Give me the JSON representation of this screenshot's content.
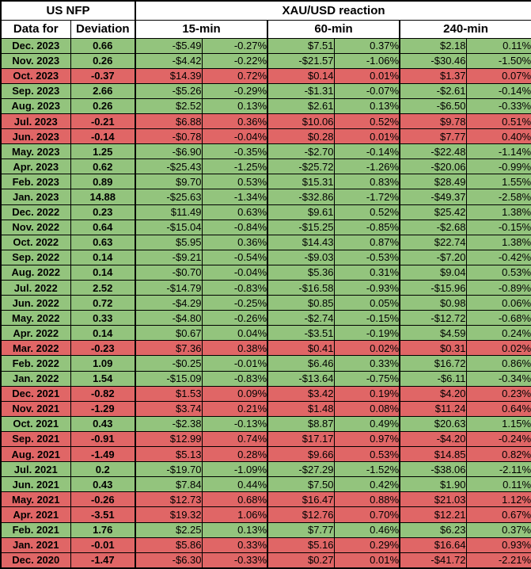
{
  "colors": {
    "row_green": "#93c47d",
    "row_red": "#e06666",
    "grid": "#000000",
    "header_bg": "#ffffff"
  },
  "chart_data": {
    "type": "table",
    "header": {
      "group_left": "US NFP",
      "group_right": "XAU/USD reaction",
      "col_month": "Data for",
      "col_deviation": "Deviation",
      "reaction_windows": [
        "15-min",
        "60-min",
        "240-min"
      ]
    },
    "rows": [
      {
        "month": "Dec. 2023",
        "deviation": "0.66",
        "color": "green",
        "r15_usd": "-$5.49",
        "r15_pct": "-0.27%",
        "r60_usd": "$7.51",
        "r60_pct": "0.37%",
        "r240_usd": "$2.18",
        "r240_pct": "0.11%"
      },
      {
        "month": "Nov. 2023",
        "deviation": "0.26",
        "color": "green",
        "r15_usd": "-$4.42",
        "r15_pct": "-0.22%",
        "r60_usd": "-$21.57",
        "r60_pct": "-1.06%",
        "r240_usd": "-$30.46",
        "r240_pct": "-1.50%"
      },
      {
        "month": "Oct. 2023",
        "deviation": "-0.37",
        "color": "red",
        "r15_usd": "$14.39",
        "r15_pct": "0.72%",
        "r60_usd": "$0.14",
        "r60_pct": "0.01%",
        "r240_usd": "$1.37",
        "r240_pct": "0.07%"
      },
      {
        "month": "Sep. 2023",
        "deviation": "2.66",
        "color": "green",
        "r15_usd": "-$5.26",
        "r15_pct": "-0.29%",
        "r60_usd": "-$1.31",
        "r60_pct": "-0.07%",
        "r240_usd": "-$2.61",
        "r240_pct": "-0.14%"
      },
      {
        "month": "Aug. 2023",
        "deviation": "0.26",
        "color": "green",
        "r15_usd": "$2.52",
        "r15_pct": "0.13%",
        "r60_usd": "$2.61",
        "r60_pct": "0.13%",
        "r240_usd": "-$6.50",
        "r240_pct": "-0.33%"
      },
      {
        "month": "Jul. 2023",
        "deviation": "-0.21",
        "color": "red",
        "r15_usd": "$6.88",
        "r15_pct": "0.36%",
        "r60_usd": "$10.06",
        "r60_pct": "0.52%",
        "r240_usd": "$9.78",
        "r240_pct": "0.51%"
      },
      {
        "month": "Jun. 2023",
        "deviation": "-0.14",
        "color": "red",
        "r15_usd": "-$0.78",
        "r15_pct": "-0.04%",
        "r60_usd": "$0.28",
        "r60_pct": "0.01%",
        "r240_usd": "$7.77",
        "r240_pct": "0.40%"
      },
      {
        "month": "May. 2023",
        "deviation": "1.25",
        "color": "green",
        "r15_usd": "-$6.90",
        "r15_pct": "-0.35%",
        "r60_usd": "-$2.70",
        "r60_pct": "-0.14%",
        "r240_usd": "-$22.48",
        "r240_pct": "-1.14%"
      },
      {
        "month": "Apr. 2023",
        "deviation": "0.62",
        "color": "green",
        "r15_usd": "-$25.43",
        "r15_pct": "-1.25%",
        "r60_usd": "-$25.72",
        "r60_pct": "-1.26%",
        "r240_usd": "-$20.06",
        "r240_pct": "-0.99%"
      },
      {
        "month": "Feb. 2023",
        "deviation": "0.89",
        "color": "green",
        "r15_usd": "$9.70",
        "r15_pct": "0.53%",
        "r60_usd": "$15.31",
        "r60_pct": "0.83%",
        "r240_usd": "$28.49",
        "r240_pct": "1.55%"
      },
      {
        "month": "Jan. 2023",
        "deviation": "14.88",
        "color": "green",
        "r15_usd": "-$25.63",
        "r15_pct": "-1.34%",
        "r60_usd": "-$32.86",
        "r60_pct": "-1.72%",
        "r240_usd": "-$49.37",
        "r240_pct": "-2.58%"
      },
      {
        "month": "Dec. 2022",
        "deviation": "0.23",
        "color": "green",
        "r15_usd": "$11.49",
        "r15_pct": "0.63%",
        "r60_usd": "$9.61",
        "r60_pct": "0.52%",
        "r240_usd": "$25.42",
        "r240_pct": "1.38%"
      },
      {
        "month": "Nov. 2022",
        "deviation": "0.64",
        "color": "green",
        "r15_usd": "-$15.04",
        "r15_pct": "-0.84%",
        "r60_usd": "-$15.25",
        "r60_pct": "-0.85%",
        "r240_usd": "-$2.68",
        "r240_pct": "-0.15%"
      },
      {
        "month": "Oct. 2022",
        "deviation": "0.63",
        "color": "green",
        "r15_usd": "$5.95",
        "r15_pct": "0.36%",
        "r60_usd": "$14.43",
        "r60_pct": "0.87%",
        "r240_usd": "$22.74",
        "r240_pct": "1.38%"
      },
      {
        "month": "Sep. 2022",
        "deviation": "0.14",
        "color": "green",
        "r15_usd": "-$9.21",
        "r15_pct": "-0.54%",
        "r60_usd": "-$9.03",
        "r60_pct": "-0.53%",
        "r240_usd": "-$7.20",
        "r240_pct": "-0.42%"
      },
      {
        "month": "Aug. 2022",
        "deviation": "0.14",
        "color": "green",
        "r15_usd": "-$0.70",
        "r15_pct": "-0.04%",
        "r60_usd": "$5.36",
        "r60_pct": "0.31%",
        "r240_usd": "$9.04",
        "r240_pct": "0.53%"
      },
      {
        "month": "Jul. 2022",
        "deviation": "2.52",
        "color": "green",
        "r15_usd": "-$14.79",
        "r15_pct": "-0.83%",
        "r60_usd": "-$16.58",
        "r60_pct": "-0.93%",
        "r240_usd": "-$15.96",
        "r240_pct": "-0.89%"
      },
      {
        "month": "Jun. 2022",
        "deviation": "0.72",
        "color": "green",
        "r15_usd": "-$4.29",
        "r15_pct": "-0.25%",
        "r60_usd": "$0.85",
        "r60_pct": "0.05%",
        "r240_usd": "$0.98",
        "r240_pct": "0.06%"
      },
      {
        "month": "May. 2022",
        "deviation": "0.33",
        "color": "green",
        "r15_usd": "-$4.80",
        "r15_pct": "-0.26%",
        "r60_usd": "-$2.74",
        "r60_pct": "-0.15%",
        "r240_usd": "-$12.72",
        "r240_pct": "-0.68%"
      },
      {
        "month": "Apr. 2022",
        "deviation": "0.14",
        "color": "green",
        "r15_usd": "$0.67",
        "r15_pct": "0.04%",
        "r60_usd": "-$3.51",
        "r60_pct": "-0.19%",
        "r240_usd": "$4.59",
        "r240_pct": "0.24%"
      },
      {
        "month": "Mar. 2022",
        "deviation": "-0.23",
        "color": "red",
        "r15_usd": "$7.36",
        "r15_pct": "0.38%",
        "r60_usd": "$0.41",
        "r60_pct": "0.02%",
        "r240_usd": "$0.31",
        "r240_pct": "0.02%"
      },
      {
        "month": "Feb. 2022",
        "deviation": "1.09",
        "color": "green",
        "r15_usd": "-$0.25",
        "r15_pct": "-0.01%",
        "r60_usd": "$6.46",
        "r60_pct": "0.33%",
        "r240_usd": "$16.72",
        "r240_pct": "0.86%"
      },
      {
        "month": "Jan. 2022",
        "deviation": "1.54",
        "color": "green",
        "r15_usd": "-$15.09",
        "r15_pct": "-0.83%",
        "r60_usd": "-$13.64",
        "r60_pct": "-0.75%",
        "r240_usd": "-$6.11",
        "r240_pct": "-0.34%"
      },
      {
        "month": "Dec. 2021",
        "deviation": "-0.82",
        "color": "red",
        "r15_usd": "$1.53",
        "r15_pct": "0.09%",
        "r60_usd": "$3.42",
        "r60_pct": "0.19%",
        "r240_usd": "$4.20",
        "r240_pct": "0.23%"
      },
      {
        "month": "Nov. 2021",
        "deviation": "-1.29",
        "color": "red",
        "r15_usd": "$3.74",
        "r15_pct": "0.21%",
        "r60_usd": "$1.48",
        "r60_pct": "0.08%",
        "r240_usd": "$11.24",
        "r240_pct": "0.64%"
      },
      {
        "month": "Oct. 2021",
        "deviation": "0.43",
        "color": "green",
        "r15_usd": "-$2.38",
        "r15_pct": "-0.13%",
        "r60_usd": "$8.87",
        "r60_pct": "0.49%",
        "r240_usd": "$20.63",
        "r240_pct": "1.15%"
      },
      {
        "month": "Sep. 2021",
        "deviation": "-0.91",
        "color": "red",
        "r15_usd": "$12.99",
        "r15_pct": "0.74%",
        "r60_usd": "$17.17",
        "r60_pct": "0.97%",
        "r240_usd": "-$4.20",
        "r240_pct": "-0.24%"
      },
      {
        "month": "Aug. 2021",
        "deviation": "-1.49",
        "color": "red",
        "r15_usd": "$5.13",
        "r15_pct": "0.28%",
        "r60_usd": "$9.66",
        "r60_pct": "0.53%",
        "r240_usd": "$14.85",
        "r240_pct": "0.82%"
      },
      {
        "month": "Jul. 2021",
        "deviation": "0.2",
        "color": "green",
        "r15_usd": "-$19.70",
        "r15_pct": "-1.09%",
        "r60_usd": "-$27.29",
        "r60_pct": "-1.52%",
        "r240_usd": "-$38.06",
        "r240_pct": "-2.11%"
      },
      {
        "month": "Jun. 2021",
        "deviation": "0.43",
        "color": "green",
        "r15_usd": "$7.84",
        "r15_pct": "0.44%",
        "r60_usd": "$7.50",
        "r60_pct": "0.42%",
        "r240_usd": "$1.90",
        "r240_pct": "0.11%"
      },
      {
        "month": "May. 2021",
        "deviation": "-0.26",
        "color": "red",
        "r15_usd": "$12.73",
        "r15_pct": "0.68%",
        "r60_usd": "$16.47",
        "r60_pct": "0.88%",
        "r240_usd": "$21.03",
        "r240_pct": "1.12%"
      },
      {
        "month": "Apr. 2021",
        "deviation": "-3.51",
        "color": "red",
        "r15_usd": "$19.32",
        "r15_pct": "1.06%",
        "r60_usd": "$12.76",
        "r60_pct": "0.70%",
        "r240_usd": "$12.21",
        "r240_pct": "0.67%"
      },
      {
        "month": "Feb. 2021",
        "deviation": "1.76",
        "color": "green",
        "r15_usd": "$2.25",
        "r15_pct": "0.13%",
        "r60_usd": "$7.77",
        "r60_pct": "0.46%",
        "r240_usd": "$6.23",
        "r240_pct": "0.37%"
      },
      {
        "month": "Jan. 2021",
        "deviation": "-0.01",
        "color": "red",
        "r15_usd": "$5.86",
        "r15_pct": "0.33%",
        "r60_usd": "$5.16",
        "r60_pct": "0.29%",
        "r240_usd": "$16.64",
        "r240_pct": "0.93%"
      },
      {
        "month": "Dec. 2020",
        "deviation": "-1.47",
        "color": "red",
        "r15_usd": "-$6.30",
        "r15_pct": "-0.33%",
        "r60_usd": "$0.27",
        "r60_pct": "0.01%",
        "r240_usd": "-$41.72",
        "r240_pct": "-2.21%"
      }
    ]
  }
}
